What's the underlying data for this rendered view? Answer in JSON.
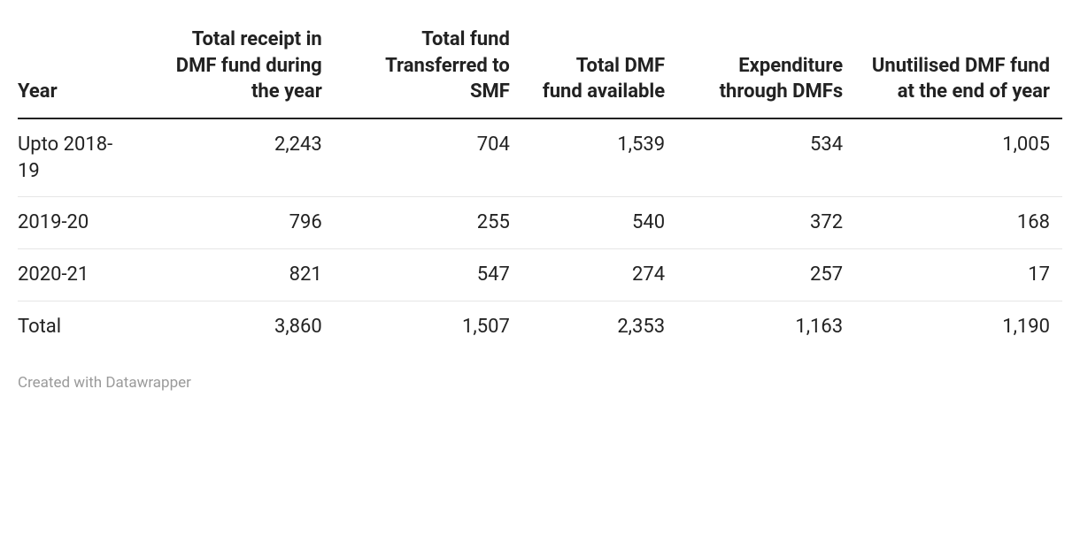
{
  "table": {
    "columns": [
      "Year",
      "Total receipt in DMF fund during the year",
      "Total fund Transferred to SMF",
      "Total DMF fund available",
      "Expenditure through DMFs",
      "Unutilised DMF fund at the end of year"
    ],
    "rows": [
      [
        "Upto 2018-19",
        "2,243",
        "704",
        "1,539",
        "534",
        "1,005"
      ],
      [
        "2019-20",
        "796",
        "255",
        "540",
        "372",
        "168"
      ],
      [
        "2020-21",
        "821",
        "547",
        "274",
        "257",
        "17"
      ],
      [
        "Total",
        "3,860",
        "1,507",
        "2,353",
        "1,163",
        "1,190"
      ]
    ]
  },
  "attribution": "Created with Datawrapper"
}
